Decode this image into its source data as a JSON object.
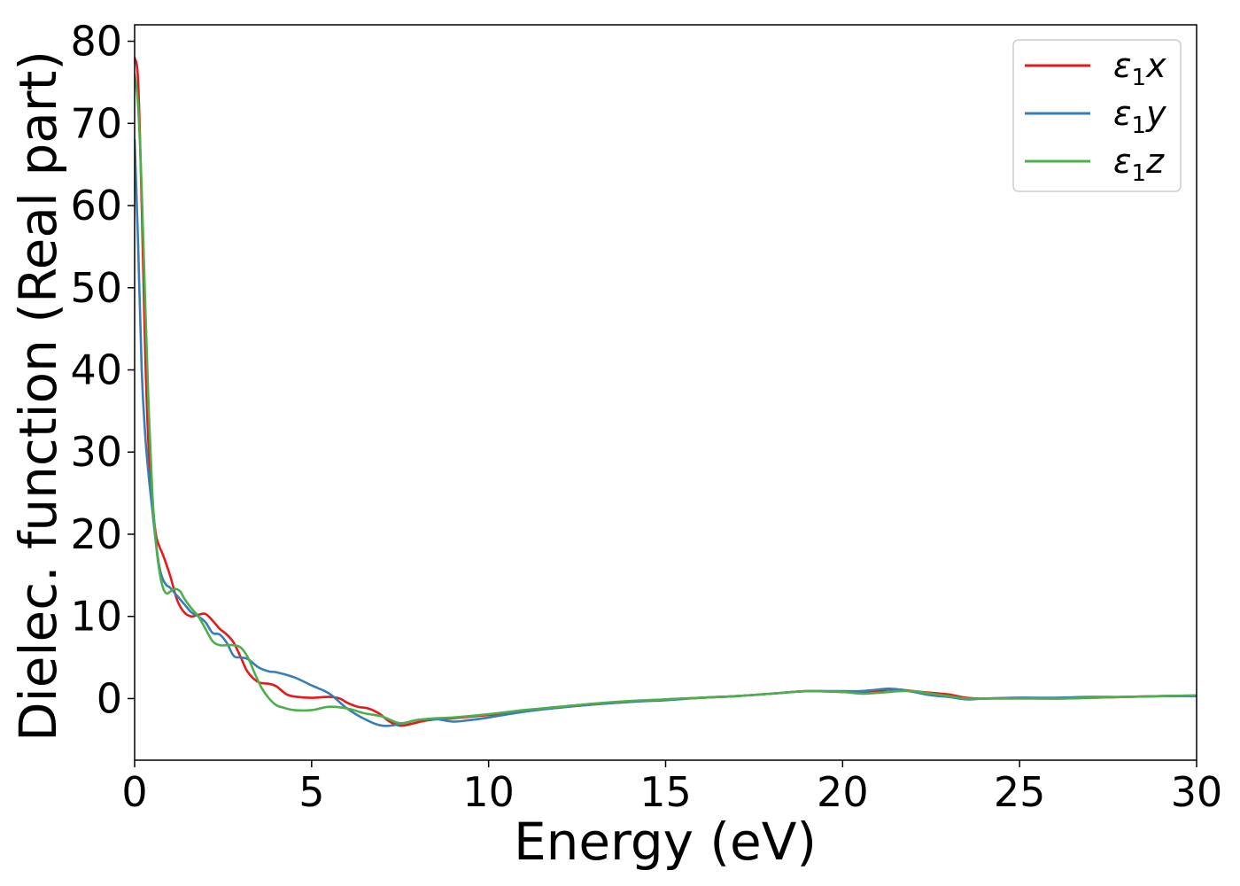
{
  "chart_data": {
    "type": "line",
    "title": "",
    "xlabel": "Energy (eV)",
    "ylabel": "Dielec. function (Real part)",
    "xlim": [
      0,
      30
    ],
    "ylim": [
      -7.5,
      82
    ],
    "xticks": [
      0,
      5,
      10,
      15,
      20,
      25,
      30
    ],
    "yticks": [
      0,
      10,
      20,
      30,
      40,
      50,
      60,
      70,
      80
    ],
    "xtick_labels": [
      "0",
      "5",
      "10",
      "15",
      "20",
      "25",
      "30"
    ],
    "ytick_labels": [
      "0",
      "10",
      "20",
      "30",
      "40",
      "50",
      "60",
      "70",
      "80"
    ],
    "grid": false,
    "legend_position": "top-right",
    "series": [
      {
        "name": "ε₁x",
        "legend_base": "ε",
        "legend_sub": "1",
        "legend_var": "x",
        "color": "#e41a1c",
        "x": [
          0,
          0.1,
          0.2,
          0.3,
          0.4,
          0.5,
          0.6,
          0.7,
          0.8,
          1.0,
          1.2,
          1.4,
          1.6,
          1.8,
          2.0,
          2.2,
          2.4,
          2.6,
          2.8,
          3.0,
          3.2,
          3.5,
          3.8,
          4.0,
          4.3,
          4.6,
          5.0,
          5.5,
          5.8,
          6.0,
          6.3,
          6.6,
          6.9,
          7.2,
          7.5,
          7.8,
          8.2,
          8.6,
          9.0,
          9.5,
          10,
          10.5,
          11,
          12,
          13,
          14,
          15,
          16,
          17,
          18,
          19,
          20,
          20.5,
          21,
          21.3,
          21.6,
          22,
          22.5,
          23,
          23.5,
          24,
          25,
          26,
          27,
          28,
          29,
          30
        ],
        "y": [
          78,
          75,
          60,
          42,
          30,
          24,
          20,
          18.5,
          17.5,
          15,
          12,
          10.5,
          10,
          10.2,
          10.3,
          9.5,
          8.5,
          7.8,
          6.8,
          5,
          3.2,
          2,
          1.8,
          1.5,
          0.5,
          0.2,
          0.1,
          0.2,
          0,
          -0.5,
          -1,
          -1.2,
          -1.8,
          -2.8,
          -3.3,
          -3.1,
          -2.7,
          -2.5,
          -2.4,
          -2.2,
          -2,
          -1.8,
          -1.5,
          -1.1,
          -0.7,
          -0.4,
          -0.1,
          0.1,
          0.3,
          0.6,
          0.9,
          0.8,
          0.8,
          0.9,
          1.1,
          1.1,
          0.9,
          0.7,
          0.5,
          0.1,
          0,
          0.1,
          0,
          0.1,
          0.2,
          0.3,
          0.3
        ]
      },
      {
        "name": "ε₁y",
        "legend_base": "ε",
        "legend_sub": "1",
        "legend_var": "y",
        "color": "#377eb8",
        "x": [
          0,
          0.1,
          0.2,
          0.3,
          0.4,
          0.5,
          0.6,
          0.7,
          0.8,
          0.9,
          1.0,
          1.2,
          1.4,
          1.6,
          1.8,
          2.0,
          2.2,
          2.4,
          2.6,
          2.8,
          3.0,
          3.2,
          3.5,
          3.8,
          4.0,
          4.5,
          5.0,
          5.5,
          6.0,
          6.5,
          7.0,
          7.5,
          8.0,
          8.5,
          9.0,
          9.5,
          10,
          11,
          12,
          13,
          14,
          15,
          16,
          17,
          18,
          19,
          20,
          20.5,
          21,
          21.3,
          21.6,
          22,
          22.5,
          23,
          23.5,
          24,
          25,
          26,
          27,
          28,
          29,
          30
        ],
        "y": [
          68,
          55,
          40,
          32,
          27,
          23,
          19,
          16,
          14.5,
          13.8,
          13.5,
          12.5,
          11.5,
          10.5,
          10,
          9.3,
          8,
          7.8,
          6.8,
          5.2,
          5,
          4.8,
          3.8,
          3.3,
          3.2,
          2.6,
          1.6,
          0.6,
          -1.2,
          -2.5,
          -3.3,
          -3.1,
          -2.6,
          -2.5,
          -2.8,
          -2.6,
          -2.3,
          -1.6,
          -1.1,
          -0.7,
          -0.4,
          -0.2,
          0.1,
          0.3,
          0.6,
          0.9,
          0.9,
          0.9,
          1.1,
          1.2,
          1.1,
          0.8,
          0.4,
          0.2,
          -0.1,
          0,
          0.1,
          0.1,
          0.2,
          0.2,
          0.3,
          0.3
        ]
      },
      {
        "name": "ε₁z",
        "legend_base": "ε",
        "legend_sub": "1",
        "legend_var": "z",
        "color": "#4daf4a",
        "x": [
          0,
          0.1,
          0.2,
          0.3,
          0.4,
          0.5,
          0.6,
          0.7,
          0.8,
          0.9,
          1.0,
          1.1,
          1.2,
          1.3,
          1.4,
          1.6,
          1.8,
          2.0,
          2.2,
          2.4,
          2.6,
          2.8,
          3.0,
          3.2,
          3.4,
          3.6,
          3.8,
          4.0,
          4.2,
          4.5,
          5.0,
          5.5,
          6.0,
          6.5,
          7.0,
          7.5,
          8.0,
          8.5,
          9.0,
          10,
          11,
          12,
          13,
          14,
          15,
          16,
          17,
          18,
          19,
          20,
          20.5,
          21,
          21.3,
          21.6,
          22,
          22.5,
          23,
          23.5,
          24,
          25,
          26,
          27,
          28,
          29,
          30
        ],
        "y": [
          76,
          72,
          62,
          48,
          35,
          25,
          19,
          15.5,
          13.5,
          12.8,
          13,
          13.3,
          13.3,
          13,
          12.2,
          11,
          10,
          8.5,
          7,
          6.5,
          6.5,
          6.5,
          6.2,
          5,
          3,
          1.2,
          0,
          -0.8,
          -1.1,
          -1.4,
          -1.4,
          -1,
          -1.2,
          -1.8,
          -2.2,
          -3,
          -2.6,
          -2.4,
          -2.3,
          -1.9,
          -1.4,
          -1,
          -0.6,
          -0.3,
          -0.1,
          0.1,
          0.3,
          0.6,
          0.9,
          0.8,
          0.6,
          0.7,
          0.8,
          0.9,
          0.9,
          0.6,
          0.3,
          0,
          0,
          0,
          0,
          0.1,
          0.2,
          0.3,
          0.4
        ]
      }
    ]
  }
}
